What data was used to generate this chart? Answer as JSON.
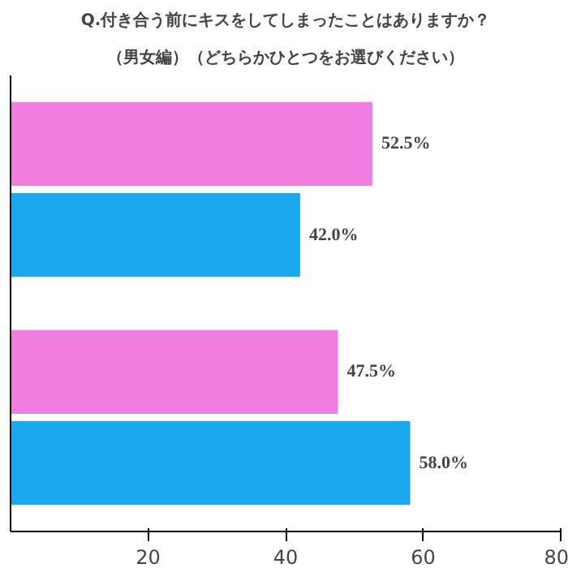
{
  "chart_data": {
    "type": "bar",
    "orientation": "horizontal",
    "title": "Q.付き合う前にキスをしてしまったことはありますか？",
    "subtitle": "（男女編）（どちらかひとつをお選びください）",
    "categories": [
      null,
      null
    ],
    "series": [
      {
        "color": "#f07ee0",
        "values": [
          52.5,
          47.5
        ],
        "value_labels": [
          "52.5%",
          "47.5%"
        ]
      },
      {
        "color": "#1aa8ee",
        "values": [
          42.0,
          58.0
        ],
        "value_labels": [
          "42.0%",
          "58.0%"
        ]
      }
    ],
    "xlim": [
      0,
      80
    ],
    "xticks": [
      20,
      40,
      60,
      80
    ],
    "grid": false
  }
}
